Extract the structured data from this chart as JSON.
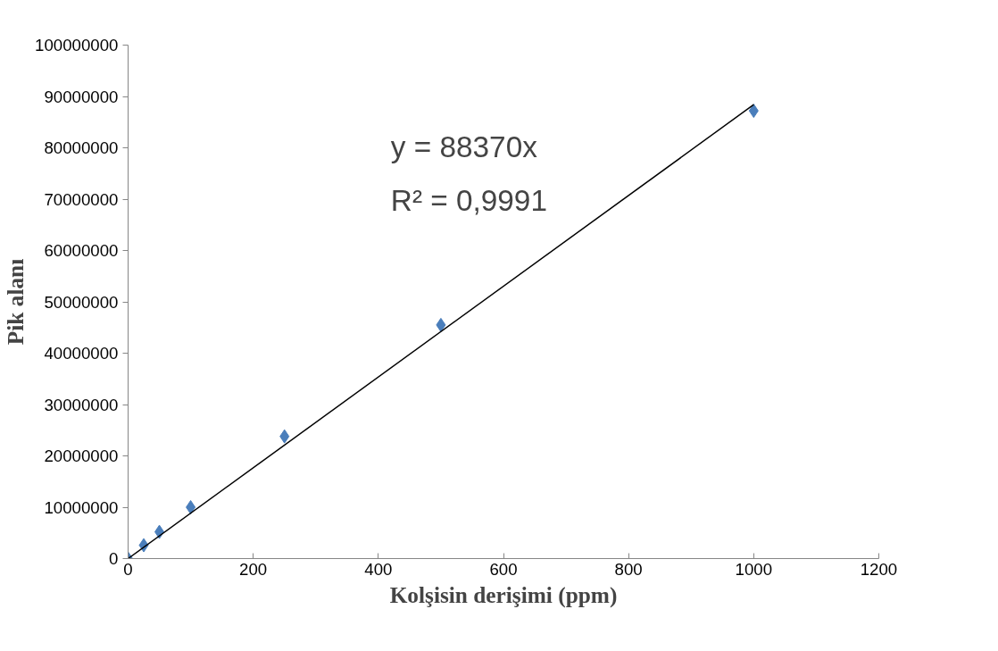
{
  "chart_data": {
    "type": "scatter",
    "xlabel": "Kolşisin derişimi (ppm)",
    "ylabel": "Pik alanı",
    "annotations": [
      "y = 88370x",
      "R² = 0,9991"
    ],
    "series": [
      {
        "marker": "diamond",
        "color": "#4a7ebb",
        "x": [
          0,
          25,
          50,
          100,
          250,
          500,
          1000
        ],
        "values": [
          0,
          2600000,
          5200000,
          10000000,
          23800000,
          45500000,
          87200000
        ]
      },
      {
        "type": "line",
        "color": "#000000",
        "x": [
          0,
          1000
        ],
        "values": [
          0,
          88400000
        ]
      }
    ],
    "xlim": [
      0,
      1200
    ],
    "xticks": [
      0,
      200,
      400,
      600,
      800,
      1000,
      1200
    ],
    "ylim": [
      0,
      100000000
    ],
    "yticks": [
      0,
      10000000,
      20000000,
      30000000,
      40000000,
      50000000,
      60000000,
      70000000,
      80000000,
      90000000,
      100000000
    ],
    "grid": false
  }
}
